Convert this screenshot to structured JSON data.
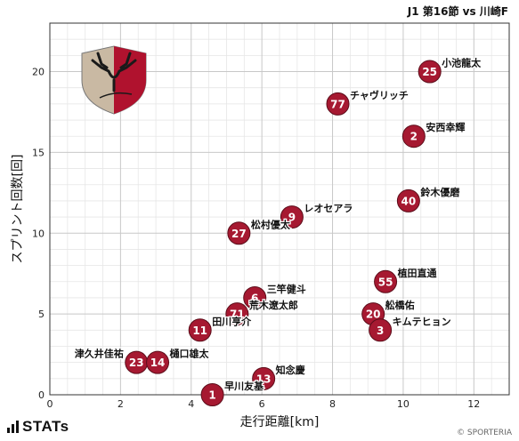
{
  "match_title": "J1 第16節 vs 川崎F",
  "brand": {
    "name": "STATs",
    "copyright": "© SPORTERIA"
  },
  "team_crest": {
    "name": "Antlers",
    "colors": [
      "#b0122e",
      "#c9b9a3",
      "#1a1a1a"
    ]
  },
  "colors": {
    "point": "#a61931",
    "point_border": "#5c0d1a",
    "grid": "#c8c8c8"
  },
  "chart_data": {
    "type": "scatter",
    "xlabel": "走行距離[km]",
    "ylabel": "スプリント回数[回]",
    "xlim": [
      0,
      13
    ],
    "ylim": [
      0,
      23
    ],
    "xticks": [
      0,
      2,
      4,
      6,
      8,
      10,
      12
    ],
    "yticks": [
      0,
      5,
      10,
      15,
      20
    ],
    "grid": true,
    "points": [
      {
        "number": "25",
        "name": "小池龍太",
        "x": 10.75,
        "y": 20,
        "label_pos": "right"
      },
      {
        "number": "77",
        "name": "チャヴリッチ",
        "x": 8.15,
        "y": 18,
        "label_pos": "right"
      },
      {
        "number": "2",
        "name": "安西幸輝",
        "x": 10.3,
        "y": 16,
        "label_pos": "right"
      },
      {
        "number": "40",
        "name": "鈴木優磨",
        "x": 10.15,
        "y": 12,
        "label_pos": "right"
      },
      {
        "number": "9",
        "name": "レオセアラ",
        "x": 6.85,
        "y": 11,
        "label_pos": "right"
      },
      {
        "number": "27",
        "name": "松村優太",
        "x": 5.35,
        "y": 10,
        "label_pos": "right"
      },
      {
        "number": "55",
        "name": "植田直通",
        "x": 9.5,
        "y": 7,
        "label_pos": "right"
      },
      {
        "number": "6",
        "name": "三竿健斗",
        "x": 5.8,
        "y": 6,
        "label_pos": "right"
      },
      {
        "number": "71",
        "name": "荒木遼太郎",
        "x": 5.3,
        "y": 5,
        "label_pos": "right"
      },
      {
        "number": "20",
        "name": "舩橋佑",
        "x": 9.15,
        "y": 5,
        "label_pos": "right"
      },
      {
        "number": "11",
        "name": "田川亨介",
        "x": 4.25,
        "y": 4,
        "label_pos": "right"
      },
      {
        "number": "3",
        "name": "キムテヒョン",
        "x": 9.35,
        "y": 4,
        "label_pos": "right"
      },
      {
        "number": "23",
        "name": "津久井佳祐",
        "x": 2.45,
        "y": 2,
        "label_pos": "left"
      },
      {
        "number": "14",
        "name": "樋口雄太",
        "x": 3.05,
        "y": 2,
        "label_pos": "right"
      },
      {
        "number": "13",
        "name": "知念慶",
        "x": 6.05,
        "y": 1,
        "label_pos": "right"
      },
      {
        "number": "1",
        "name": "早川友基",
        "x": 4.6,
        "y": 0,
        "label_pos": "right"
      }
    ]
  }
}
